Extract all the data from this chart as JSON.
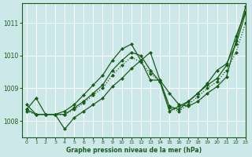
{
  "xlabel": "Graphe pression niveau de la mer (hPa)",
  "ylim": [
    1007.5,
    1011.6
  ],
  "xlim": [
    -0.5,
    23
  ],
  "yticks": [
    1008,
    1009,
    1010,
    1011
  ],
  "xticks": [
    0,
    1,
    2,
    3,
    4,
    5,
    6,
    7,
    8,
    9,
    10,
    11,
    12,
    13,
    14,
    15,
    16,
    17,
    18,
    19,
    20,
    21,
    22,
    23
  ],
  "bg_color": "#cde8e8",
  "line_color": "#1a5c1a",
  "grid_color": "#ffffff",
  "series": [
    {
      "y": [
        1008.35,
        1008.7,
        1008.2,
        1008.2,
        1007.75,
        1008.1,
        1008.3,
        1008.5,
        1008.7,
        1009.05,
        1009.3,
        1009.6,
        1009.85,
        1010.1,
        1009.25,
        1008.85,
        1008.5,
        1008.45,
        1008.6,
        1008.85,
        1009.05,
        1009.35,
        1010.45,
        1011.5
      ],
      "linestyle": "-",
      "linewidth": 0.9,
      "marker": "D",
      "markersize": 2.0
    },
    {
      "y": [
        1008.35,
        1008.2,
        1008.2,
        1008.2,
        1008.2,
        1008.4,
        1008.6,
        1008.85,
        1009.1,
        1009.55,
        1009.85,
        1010.1,
        1010.0,
        1009.55,
        1009.2,
        1008.3,
        1008.45,
        1008.6,
        1008.85,
        1009.15,
        1009.55,
        1009.75,
        1010.35,
        1011.3
      ],
      "linestyle": "-",
      "linewidth": 0.9,
      "marker": "D",
      "markersize": 2.0
    },
    {
      "y": [
        1008.5,
        1008.2,
        1008.2,
        1008.2,
        1008.3,
        1008.5,
        1008.8,
        1009.1,
        1009.4,
        1009.85,
        1010.2,
        1010.35,
        1009.85,
        1009.25,
        1009.25,
        1008.45,
        1008.35,
        1008.6,
        1008.85,
        1009.1,
        1009.3,
        1009.7,
        1010.6,
        1011.35
      ],
      "linestyle": "-",
      "linewidth": 0.9,
      "marker": "D",
      "markersize": 2.0
    },
    {
      "y": [
        1008.3,
        1008.2,
        1008.2,
        1008.2,
        1008.2,
        1008.35,
        1008.55,
        1008.8,
        1009.0,
        1009.4,
        1009.7,
        1009.95,
        1009.8,
        1009.45,
        1009.2,
        1008.4,
        1008.3,
        1008.5,
        1008.75,
        1009.0,
        1009.2,
        1009.55,
        1010.1,
        1011.0
      ],
      "linestyle": ":",
      "linewidth": 0.9,
      "marker": "D",
      "markersize": 2.0
    }
  ]
}
